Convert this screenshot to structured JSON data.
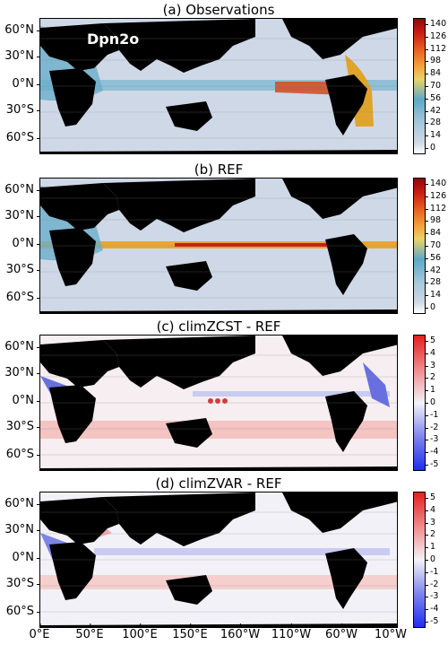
{
  "chart_data": [
    {
      "type": "heatmap",
      "title": "(a) Observations",
      "watermark": "Dpn2o",
      "ylabels": [
        "60°N",
        "30°N",
        "0°N",
        "30°S",
        "60°S"
      ],
      "colorbar_ticks": [
        "140",
        "126",
        "112",
        "98",
        "84",
        "70",
        "56",
        "42",
        "28",
        "14",
        "0"
      ],
      "colorbar_range": [
        0,
        140
      ],
      "colormap": "white-blue-yellow-red"
    },
    {
      "type": "heatmap",
      "title": "(b) REF",
      "ylabels": [
        "60°N",
        "30°N",
        "0°N",
        "30°S",
        "60°S"
      ],
      "colorbar_ticks": [
        "140",
        "126",
        "112",
        "98",
        "84",
        "70",
        "56",
        "42",
        "28",
        "14",
        "0"
      ],
      "colorbar_range": [
        0,
        140
      ],
      "colormap": "white-blue-yellow-red"
    },
    {
      "type": "heatmap",
      "title": "(c) climZCST - REF",
      "ylabels": [
        "60°N",
        "30°N",
        "0°N",
        "30°S",
        "60°S"
      ],
      "colorbar_ticks": [
        "5",
        "4",
        "3",
        "2",
        "1",
        "0",
        "-1",
        "-2",
        "-3",
        "-4",
        "-5"
      ],
      "colorbar_range": [
        -5,
        5
      ],
      "colormap": "blue-white-red"
    },
    {
      "type": "heatmap",
      "title": "(d) climZVAR - REF",
      "ylabels": [
        "60°N",
        "30°N",
        "0°N",
        "30°S",
        "60°S"
      ],
      "colorbar_ticks": [
        "5",
        "4",
        "3",
        "2",
        "1",
        "0",
        "-1",
        "-2",
        "-3",
        "-4",
        "-5"
      ],
      "colorbar_range": [
        -5,
        5
      ],
      "colormap": "blue-white-red"
    }
  ],
  "xlabels": [
    "0°E",
    "50°E",
    "100°E",
    "150°E",
    "160°W",
    "110°W",
    "60°W",
    "10°W"
  ],
  "colors": {
    "land": "#000000",
    "ocean_low": "#cfd8e6",
    "ocean_mid": "#5fa8c8",
    "high": "#c81a14",
    "diff_pos": "#f3c4c2",
    "diff_neg": "#8a93e6"
  }
}
